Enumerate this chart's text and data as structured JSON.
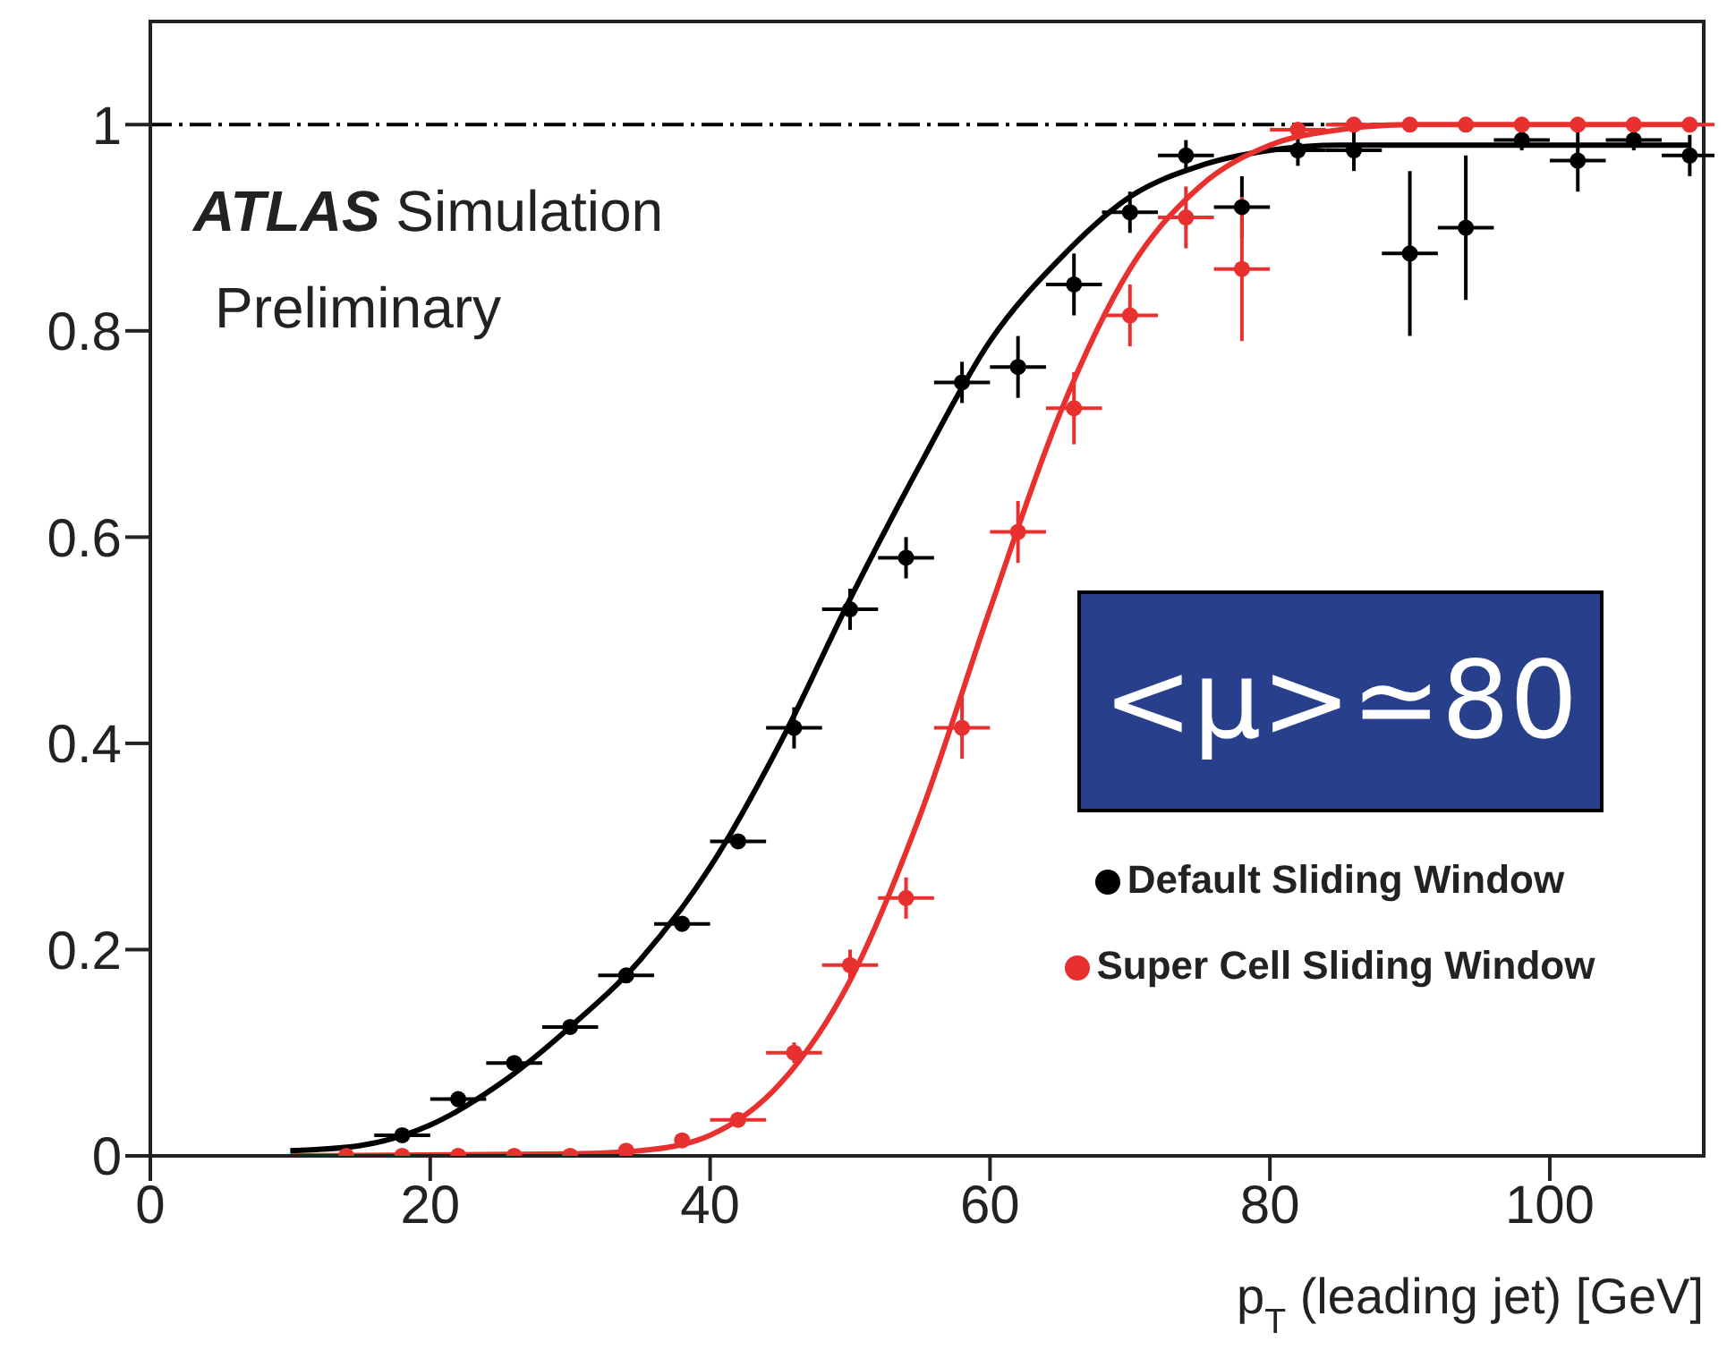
{
  "chart_data": {
    "type": "scatter",
    "xlabel": "p$_{T}$ (leading jet) [GeV]",
    "xlim": [
      0,
      111
    ],
    "xticks": [
      0,
      20,
      40,
      60,
      80,
      100
    ],
    "ylim": [
      0,
      1.1
    ],
    "yticks": [
      0,
      0.2,
      0.4,
      0.6,
      0.8,
      1
    ],
    "marker": "circle",
    "legend": "bottom right",
    "grid": false,
    "annotations": [
      "ATLAS Simulation",
      "Preliminary",
      "<μ>≃80"
    ],
    "ref_lines": [
      {
        "axis": "y",
        "value": 1,
        "color": "#000000",
        "line_style": "dashed"
      }
    ],
    "series": [
      {
        "name": "Default Sliding Window",
        "color": "#000000",
        "x": [
          18,
          22,
          26,
          30,
          34,
          38,
          42,
          46,
          50,
          54,
          58,
          62,
          66,
          70,
          74,
          78,
          82,
          86,
          90,
          94,
          98,
          102,
          106,
          110
        ],
        "values": [
          0.02,
          0.055,
          0.09,
          0.125,
          0.175,
          0.225,
          0.305,
          0.415,
          0.53,
          0.58,
          0.75,
          0.765,
          0.845,
          0.915,
          0.97,
          0.92,
          0.975,
          0.975,
          0.875,
          0.9,
          0.985,
          0.965,
          0.985,
          0.97
        ],
        "errors": [
          null,
          null,
          null,
          null,
          null,
          null,
          null,
          0.02,
          0.02,
          0.02,
          0.02,
          0.03,
          0.03,
          0.02,
          0.015,
          0.03,
          0.015,
          0.02,
          0.08,
          0.07,
          0.01,
          0.03,
          0.01,
          0.02
        ],
        "xerrors": [
          2,
          2,
          2,
          2,
          2,
          2,
          2,
          2,
          2,
          2,
          2,
          2,
          2,
          2,
          2,
          2,
          2,
          2,
          2,
          2,
          2,
          2,
          2,
          2
        ]
      },
      {
        "name": "Super Cell Sliding Window",
        "color": "#e8312f",
        "x": [
          14,
          18,
          22,
          26,
          30,
          34,
          38,
          42,
          46,
          50,
          54,
          58,
          62,
          66,
          70,
          74,
          78,
          82,
          86,
          90,
          94,
          98,
          102,
          106,
          110
        ],
        "values": [
          0,
          0,
          0,
          0,
          0,
          0.005,
          0.015,
          0.035,
          0.1,
          0.185,
          0.25,
          0.415,
          0.605,
          0.725,
          0.815,
          0.91,
          0.86,
          0.995,
          1,
          1,
          1,
          1,
          1,
          1,
          1
        ],
        "errors": [
          null,
          null,
          null,
          null,
          null,
          null,
          null,
          null,
          0.01,
          0.015,
          0.02,
          0.03,
          0.03,
          0.035,
          0.03,
          0.03,
          0.07,
          null,
          null,
          null,
          null,
          null,
          null,
          null,
          null
        ],
        "xerrors": [
          null,
          null,
          null,
          null,
          null,
          null,
          null,
          2,
          2,
          2,
          2,
          2,
          2,
          2,
          2,
          2,
          2,
          2,
          2,
          null,
          null,
          null,
          null,
          null,
          2
        ]
      },
      {
        "type": "line",
        "marker": "none",
        "color": "#000000",
        "x": [
          10,
          15,
          20,
          25,
          30,
          35,
          40,
          45,
          50,
          55,
          60,
          65,
          70,
          75,
          80,
          85,
          90,
          110
        ],
        "values": [
          0.005,
          0.01,
          0.03,
          0.07,
          0.125,
          0.19,
          0.28,
          0.4,
          0.54,
          0.67,
          0.79,
          0.87,
          0.93,
          0.96,
          0.975,
          0.98,
          0.98,
          0.98
        ]
      },
      {
        "type": "line",
        "marker": "none",
        "color": "#e8312f",
        "x": [
          10,
          30,
          35,
          40,
          45,
          50,
          55,
          60,
          65,
          70,
          75,
          80,
          85,
          90,
          110
        ],
        "values": [
          0,
          0.002,
          0.005,
          0.02,
          0.07,
          0.17,
          0.33,
          0.53,
          0.72,
          0.86,
          0.94,
          0.98,
          0.995,
          1,
          1
        ]
      }
    ]
  }
}
